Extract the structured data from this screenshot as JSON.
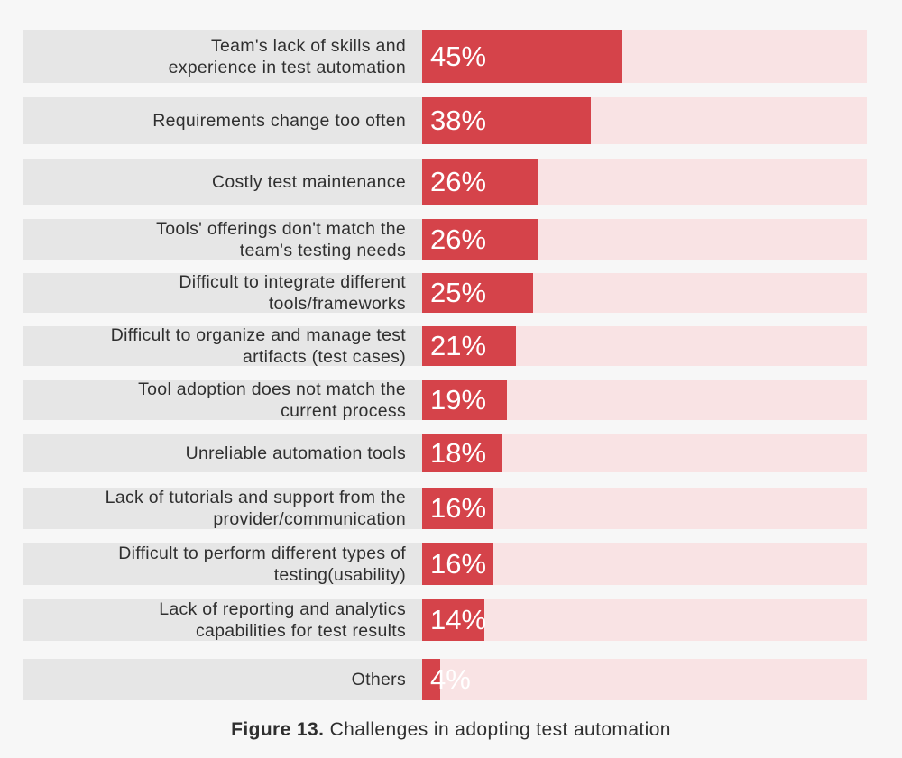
{
  "chart_data": {
    "type": "bar",
    "orientation": "horizontal",
    "categories": [
      "Team's lack of skills and\nexperience in test automation",
      "Requirements change too often",
      "Costly test maintenance",
      "Tools' offerings don't match the\nteam's testing needs",
      "Difficult to integrate different\ntools/frameworks",
      "Difficult to organize and manage test\nartifacts (test cases)",
      "Tool adoption does not match the\ncurrent process",
      "Unreliable automation tools",
      "Lack of tutorials and support from the\nprovider/communication",
      "Difficult to perform different types of\ntesting(usability)",
      "Lack of reporting and analytics\ncapabilities for test results",
      "Others"
    ],
    "values": [
      45,
      38,
      26,
      26,
      25,
      21,
      19,
      18,
      16,
      16,
      14,
      4
    ],
    "value_labels": [
      "45%",
      "38%",
      "26%",
      "26%",
      "25%",
      "21%",
      "19%",
      "18%",
      "16%",
      "16%",
      "14%",
      "4%"
    ],
    "xlim": [
      0,
      100
    ],
    "grid": false,
    "legend": "none",
    "colors": {
      "bar": "#d5434a",
      "track": "#f9e3e4",
      "label_bg": "#e6e6e6",
      "value_text": "#ffffff"
    }
  },
  "caption": {
    "figure_number": "Figure 13.",
    "text": "Challenges in adopting test automation"
  }
}
